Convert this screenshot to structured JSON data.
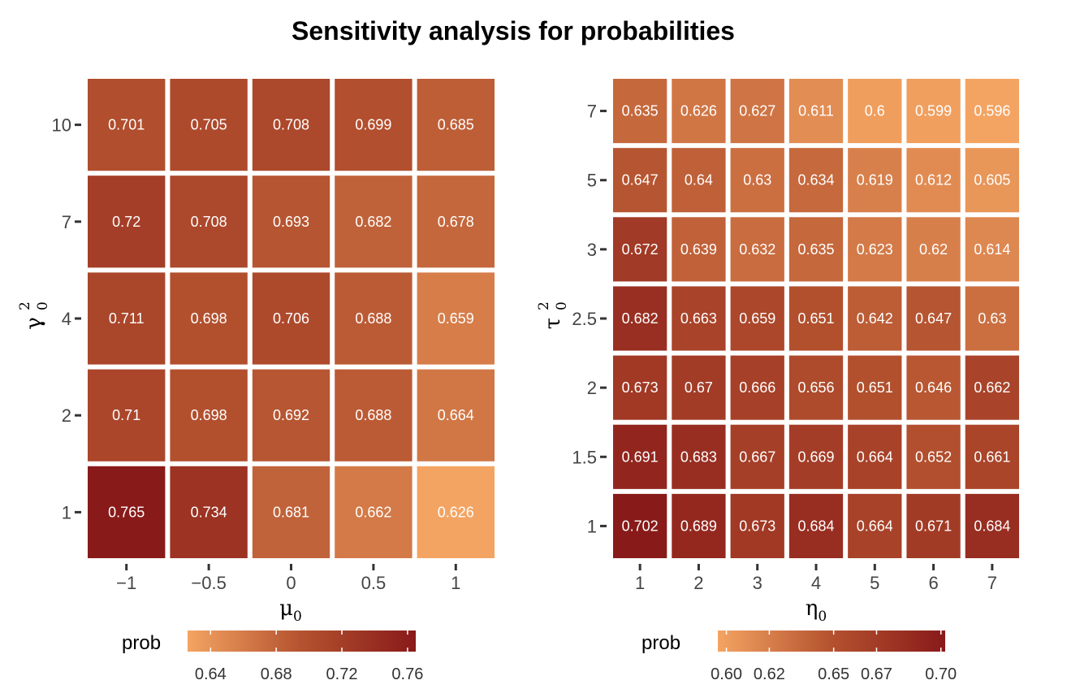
{
  "title": "Sensitivity analysis for probabilities",
  "colors": {
    "low": "#F4A462",
    "mid": "#B4522F",
    "high": "#891A1A",
    "cell_text": "#FFFFFF",
    "gap": "#FFFFFF"
  },
  "chart_data": [
    {
      "type": "heatmap",
      "title": "",
      "xlabel": {
        "symbol": "μ",
        "subscript": "0"
      },
      "ylabel": {
        "symbol": "γ",
        "superscript": "2",
        "subscript": "0"
      },
      "x_categories": [
        "−1",
        "−0.5",
        "0",
        "0.5",
        "1"
      ],
      "y_categories": [
        "1",
        "2",
        "4",
        "7",
        "10"
      ],
      "values": [
        [
          0.765,
          0.734,
          0.681,
          0.662,
          0.626
        ],
        [
          0.71,
          0.698,
          0.692,
          0.688,
          0.664
        ],
        [
          0.711,
          0.698,
          0.706,
          0.688,
          0.659
        ],
        [
          0.72,
          0.708,
          0.693,
          0.682,
          0.678
        ],
        [
          0.701,
          0.705,
          0.708,
          0.699,
          0.685
        ]
      ],
      "value_labels": [
        [
          "0.765",
          "0.734",
          "0.681",
          "0.662",
          "0.626"
        ],
        [
          "0.71",
          "0.698",
          "0.692",
          "0.688",
          "0.664"
        ],
        [
          "0.711",
          "0.698",
          "0.706",
          "0.688",
          "0.659"
        ],
        [
          "0.72",
          "0.708",
          "0.693",
          "0.682",
          "0.678"
        ],
        [
          "0.701",
          "0.705",
          "0.708",
          "0.699",
          "0.685"
        ]
      ],
      "legend": {
        "title": "prob",
        "range": [
          0.626,
          0.765
        ],
        "ticks": [
          0.64,
          0.68,
          0.72,
          0.76
        ],
        "tick_labels": [
          "0.64",
          "0.68",
          "0.72",
          "0.76"
        ],
        "placement": "bottom"
      }
    },
    {
      "type": "heatmap",
      "title": "",
      "xlabel": {
        "symbol": "η",
        "subscript": "0"
      },
      "ylabel": {
        "symbol": "τ",
        "superscript": "2",
        "subscript": "0"
      },
      "x_categories": [
        "1",
        "2",
        "3",
        "4",
        "5",
        "6",
        "7"
      ],
      "y_categories": [
        "1",
        "1.5",
        "2",
        "2.5",
        "3",
        "5",
        "7"
      ],
      "values": [
        [
          0.702,
          0.689,
          0.673,
          0.684,
          0.664,
          0.671,
          0.684
        ],
        [
          0.691,
          0.683,
          0.667,
          0.669,
          0.664,
          0.652,
          0.661
        ],
        [
          0.673,
          0.67,
          0.666,
          0.656,
          0.651,
          0.646,
          0.662
        ],
        [
          0.682,
          0.663,
          0.659,
          0.651,
          0.642,
          0.647,
          0.63
        ],
        [
          0.672,
          0.639,
          0.632,
          0.635,
          0.623,
          0.62,
          0.614
        ],
        [
          0.647,
          0.64,
          0.63,
          0.634,
          0.619,
          0.612,
          0.605
        ],
        [
          0.635,
          0.626,
          0.627,
          0.611,
          0.6,
          0.599,
          0.596
        ]
      ],
      "value_labels": [
        [
          "0.702",
          "0.689",
          "0.673",
          "0.684",
          "0.664",
          "0.671",
          "0.684"
        ],
        [
          "0.691",
          "0.683",
          "0.667",
          "0.669",
          "0.664",
          "0.652",
          "0.661"
        ],
        [
          "0.673",
          "0.67",
          "0.666",
          "0.656",
          "0.651",
          "0.646",
          "0.662"
        ],
        [
          "0.682",
          "0.663",
          "0.659",
          "0.651",
          "0.642",
          "0.647",
          "0.63"
        ],
        [
          "0.672",
          "0.639",
          "0.632",
          "0.635",
          "0.623",
          "0.62",
          "0.614"
        ],
        [
          "0.647",
          "0.64",
          "0.63",
          "0.634",
          "0.619",
          "0.612",
          "0.605"
        ],
        [
          "0.635",
          "0.626",
          "0.627",
          "0.611",
          "0.6",
          "0.599",
          "0.596"
        ]
      ],
      "legend": {
        "title": "prob",
        "range": [
          0.596,
          0.702
        ],
        "ticks": [
          0.6,
          0.62,
          0.65,
          0.67,
          0.7
        ],
        "tick_labels": [
          "0.60",
          "0.62",
          "0.65",
          "0.67",
          "0.70"
        ],
        "placement": "bottom"
      }
    }
  ]
}
